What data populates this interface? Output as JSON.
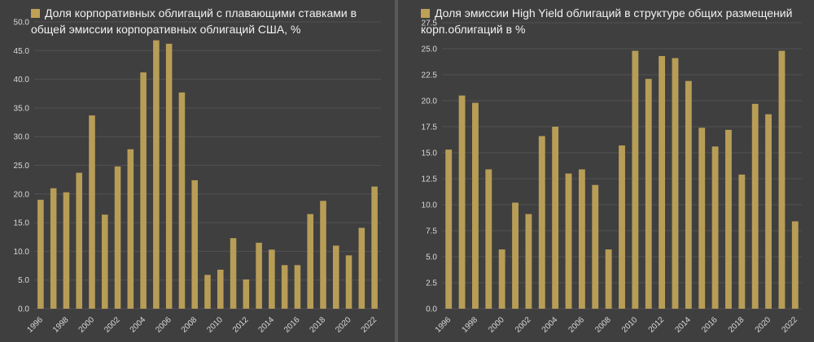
{
  "colors": {
    "bar": "#b89d57",
    "background": "#3f3f3f",
    "text": "#f2f2f2",
    "grid": "#525252"
  },
  "chart_data": [
    {
      "type": "bar",
      "title": "Доля корпоративных облигаций с плавающими ставками в общей эмиссии корпоративных облигаций США, %",
      "legend": "Доля корпоративных облигаций с плавающими ставками в общей эмиссии корпоративных облигаций США, %",
      "legend_position": "top-left",
      "categories": [
        "1996",
        "1997",
        "1998",
        "1999",
        "2000",
        "2001",
        "2002",
        "2003",
        "2004",
        "2005",
        "2006",
        "2007",
        "2008",
        "2009",
        "2010",
        "2011",
        "2012",
        "2013",
        "2014",
        "2015",
        "2016",
        "2017",
        "2018",
        "2019",
        "2020",
        "2021",
        "2022"
      ],
      "x_tick_labels": [
        "1996",
        "1998",
        "2000",
        "2002",
        "2004",
        "2006",
        "2008",
        "2010",
        "2012",
        "2014",
        "2016",
        "2018",
        "2020",
        "2022"
      ],
      "values": [
        19.0,
        21.0,
        20.3,
        23.7,
        33.7,
        16.4,
        24.8,
        27.8,
        41.2,
        46.8,
        46.2,
        37.7,
        22.4,
        5.9,
        6.8,
        12.3,
        5.1,
        11.5,
        10.3,
        7.6,
        7.6,
        16.5,
        18.8,
        11.0,
        9.3,
        14.1,
        21.3
      ],
      "ylim": [
        0,
        50
      ],
      "y_ticks": [
        "0.0",
        "5.0",
        "10.0",
        "15.0",
        "20.0",
        "25.0",
        "30.0",
        "35.0",
        "40.0",
        "45.0",
        "50.0"
      ],
      "grid": true
    },
    {
      "type": "bar",
      "title": "Доля эмиссии High Yield облигаций в структуре общих размещений корп.облигаций в %",
      "legend": "Доля эмиссии High Yield облигаций в структуре общих размещений корп.облигаций в %",
      "legend_position": "top-left",
      "categories": [
        "1996",
        "1997",
        "1998",
        "1999",
        "2000",
        "2001",
        "2002",
        "2003",
        "2004",
        "2005",
        "2006",
        "2007",
        "2008",
        "2009",
        "2010",
        "2011",
        "2012",
        "2013",
        "2014",
        "2015",
        "2016",
        "2017",
        "2018",
        "2019",
        "2020",
        "2021",
        "2022"
      ],
      "x_tick_labels": [
        "1996",
        "1998",
        "2000",
        "2002",
        "2004",
        "2006",
        "2008",
        "2010",
        "2012",
        "2014",
        "2016",
        "2018",
        "2020",
        "2022"
      ],
      "values": [
        15.3,
        20.5,
        19.8,
        13.4,
        5.7,
        10.2,
        9.1,
        16.6,
        17.5,
        13.0,
        13.4,
        11.9,
        5.7,
        15.7,
        24.8,
        22.1,
        24.3,
        24.1,
        21.9,
        17.4,
        15.6,
        17.2,
        12.9,
        19.7,
        18.7,
        24.8,
        8.4
      ],
      "ylim": [
        0,
        27.5
      ],
      "y_ticks": [
        "0.0",
        "2.5",
        "5.0",
        "7.5",
        "10.0",
        "12.5",
        "15.0",
        "17.5",
        "20.0",
        "22.5",
        "25.0",
        "27.5"
      ],
      "grid": true
    }
  ]
}
